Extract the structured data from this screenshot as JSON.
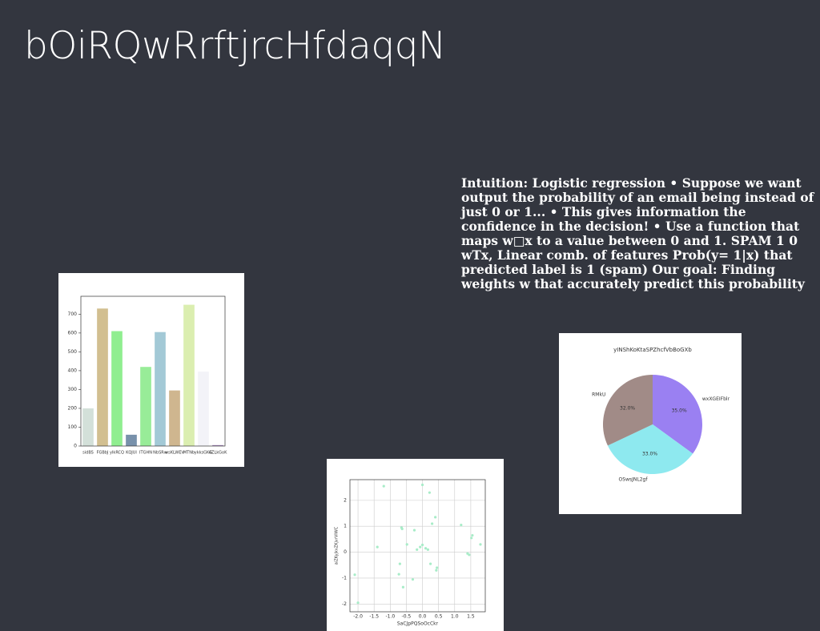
{
  "title": "bOiRQwRrftjrcHfdaqqN",
  "text": "Intuition: Logistic regression • Suppose we want output the probability of an email being instead of just 0 or 1... • This gives information the confidence in the decision! • Use a function that maps w□x to a value between 0 and 1. SPAM 1 0 wTx, Linear comb. of features Prob(y= 1|x) that predicted label is 1 (spam) Our goal: Finding weights w that accurately predict this probability",
  "chart_data": [
    {
      "type": "bar",
      "categories": [
        "sidBS",
        "FGBbJ",
        "yIkRCQ",
        "KQJUI",
        "ITGHN",
        "NbSRw",
        "wsKLWEV",
        "MTNb",
        "ykksGKG",
        "AZLkGoK"
      ],
      "values": [
        200,
        730,
        610,
        60,
        420,
        605,
        295,
        750,
        395,
        5
      ],
      "colors": [
        "#d3e0d9",
        "#d2bf90",
        "#90ee90",
        "#7891ab",
        "#98ec98",
        "#a3c9d6",
        "#cfb68f",
        "#dbeeb0",
        "#f3f3f8",
        "#a98ac0"
      ],
      "ylim": [
        0,
        795
      ],
      "yticks": [
        0,
        100,
        200,
        300,
        400,
        500,
        600,
        700
      ]
    },
    {
      "type": "scatter",
      "xlabel": "SaCJpPQSoOcCkr",
      "ylabel": "aiZKyjkvZKjvrVIWC",
      "color": "#a8ecc8",
      "x": [
        -2.1,
        -2.0,
        -1.2,
        -1.4,
        -0.73,
        -0.7,
        -0.63,
        -0.6,
        -0.48,
        -0.3,
        -0.25,
        -0.17,
        -0.07,
        0.0,
        0.0,
        0.1,
        0.17,
        0.22,
        0.25,
        0.3,
        0.4,
        0.43,
        0.45,
        1.2,
        1.4,
        1.45,
        1.55,
        1.52,
        1.8,
        -0.65
      ],
      "y": [
        -0.87,
        -1.95,
        2.55,
        0.2,
        -0.85,
        -0.45,
        0.9,
        -1.35,
        0.3,
        -1.05,
        0.85,
        0.1,
        0.2,
        0.28,
        2.6,
        0.15,
        0.1,
        2.3,
        -0.45,
        1.1,
        1.35,
        -0.7,
        -0.6,
        1.05,
        -0.05,
        -0.1,
        0.65,
        0.55,
        0.3,
        0.95
      ],
      "xlim": [
        -2.25,
        1.95
      ],
      "ylim": [
        -2.3,
        2.8
      ],
      "xticks": [
        {
          "value": -2,
          "label": "-2.0"
        },
        -1.5,
        {
          "value": -1,
          "label": "-1.0"
        },
        -0.5,
        {
          "value": 0,
          "label": "0.0"
        },
        0.5,
        {
          "value": 1,
          "label": "1.0"
        },
        1.5
      ],
      "yticks": [
        -2,
        -1,
        0,
        1,
        2
      ],
      "grid": true
    },
    {
      "type": "pie",
      "title": "yINShKoKtaSPZhcfVbBoGXb",
      "categories": [
        "wxXGEIFblr",
        "OSwsJNL2gf",
        "RMkU"
      ],
      "values": [
        35,
        33,
        32
      ],
      "value_labels": [
        "35.0%",
        "33.0%",
        "32.0%"
      ],
      "colors": [
        "#9a80f2",
        "#8ee9ef",
        "#a18b87"
      ]
    }
  ]
}
